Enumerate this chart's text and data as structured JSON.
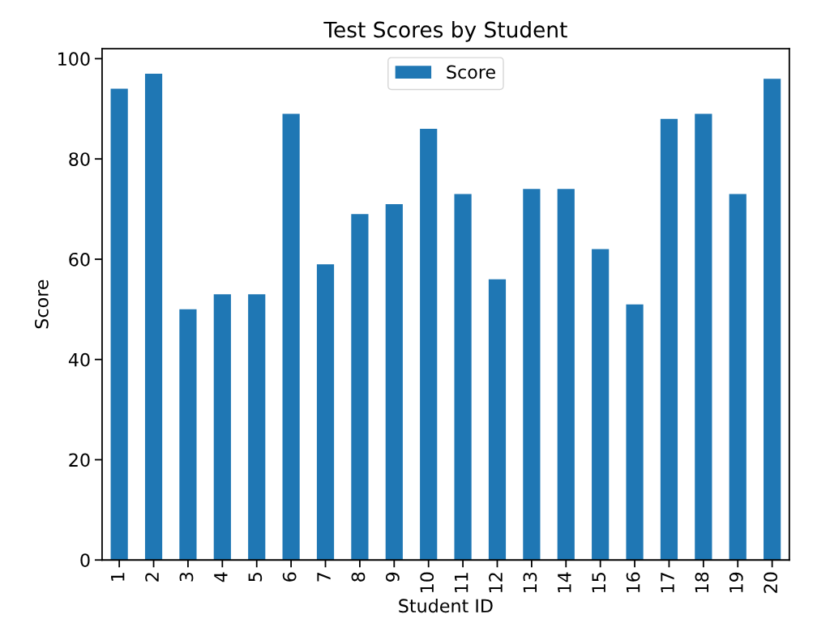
{
  "chart_data": {
    "type": "bar",
    "title": "Test Scores by Student",
    "xlabel": "Student ID",
    "ylabel": "Score",
    "categories": [
      "1",
      "2",
      "3",
      "4",
      "5",
      "6",
      "7",
      "8",
      "9",
      "10",
      "11",
      "12",
      "13",
      "14",
      "15",
      "16",
      "17",
      "18",
      "19",
      "20"
    ],
    "series": [
      {
        "name": "Score",
        "color": "#1f77b4",
        "values": [
          94,
          97,
          50,
          53,
          53,
          89,
          59,
          69,
          71,
          86,
          73,
          56,
          74,
          74,
          62,
          51,
          88,
          89,
          73,
          96
        ]
      }
    ],
    "ylim": [
      0,
      102
    ],
    "yticks": [
      0,
      20,
      40,
      60,
      80,
      100
    ],
    "legend": "top"
  }
}
